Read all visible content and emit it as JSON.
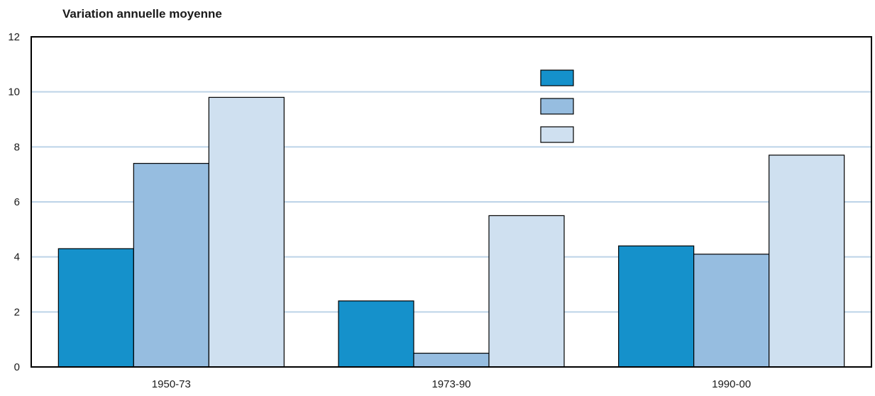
{
  "chart_data": {
    "type": "bar",
    "title": "Variation annuelle moyenne",
    "xlabel": "",
    "ylabel": "",
    "categories": [
      "1950-73",
      "1973-90",
      "1990-00"
    ],
    "series": [
      {
        "name": "",
        "color": "#1591cb",
        "values": [
          4.3,
          2.4,
          4.4
        ]
      },
      {
        "name": "",
        "color": "#96bde0",
        "values": [
          7.4,
          0.5,
          4.1
        ]
      },
      {
        "name": "",
        "color": "#cfe0f0",
        "values": [
          9.8,
          5.5,
          7.7
        ]
      }
    ],
    "ylim": [
      0,
      12
    ],
    "yticks": [
      "0",
      "2",
      "4",
      "6",
      "8",
      "10",
      "12"
    ],
    "grid": true,
    "grid_color": "#bcd3e8",
    "legend_position": "top-right"
  }
}
